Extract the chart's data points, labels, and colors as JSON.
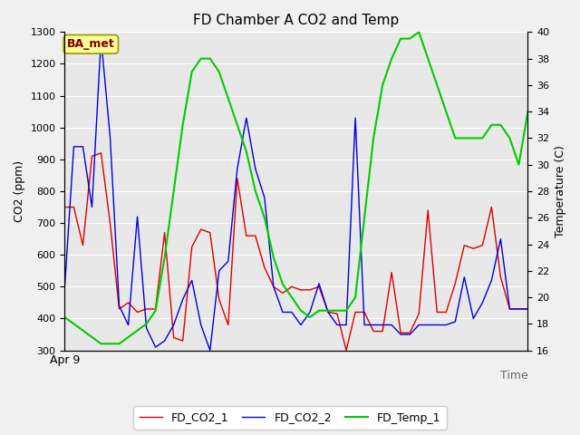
{
  "title": "FD Chamber A CO2 and Temp",
  "xlabel": "Time",
  "ylabel_left": "CO2 (ppm)",
  "ylabel_right": "Temperature (C)",
  "x_label_start": "Apr 9",
  "ylim_left": [
    300,
    1300
  ],
  "ylim_right": [
    16,
    40
  ],
  "yticks_left": [
    300,
    400,
    500,
    600,
    700,
    800,
    900,
    1000,
    1100,
    1200,
    1300
  ],
  "yticks_right": [
    16,
    18,
    20,
    22,
    24,
    26,
    28,
    30,
    32,
    34,
    36,
    38,
    40
  ],
  "fig_facecolor": "#f0f0f0",
  "plot_bg_color": "#e8e8e8",
  "annotation_text": "BA_met",
  "annotation_bg": "#ffff99",
  "annotation_border": "#999900",
  "annotation_text_color": "#800000",
  "legend_labels": [
    "FD_CO2_1",
    "FD_CO2_2",
    "FD_Temp_1"
  ],
  "line_colors": [
    "#dd0000",
    "#0000dd",
    "#00cc00"
  ],
  "co2_1": [
    750,
    750,
    630,
    910,
    920,
    700,
    430,
    450,
    420,
    430,
    430,
    670,
    340,
    330,
    625,
    680,
    670,
    460,
    380,
    840,
    660,
    660,
    560,
    500,
    480,
    500,
    490,
    490,
    500,
    420,
    415,
    300,
    420,
    420,
    360,
    360,
    545,
    355,
    355,
    415,
    740,
    420,
    420,
    510,
    630,
    620,
    630,
    750,
    530,
    430,
    430,
    430
  ],
  "co2_2": [
    500,
    940,
    940,
    750,
    1280,
    970,
    440,
    380,
    720,
    370,
    310,
    330,
    380,
    460,
    520,
    380,
    300,
    550,
    580,
    870,
    1030,
    870,
    780,
    500,
    420,
    420,
    380,
    420,
    510,
    420,
    380,
    380,
    1030,
    380,
    380,
    380,
    380,
    350,
    350,
    380,
    380,
    380,
    380,
    390,
    530,
    400,
    450,
    520,
    650,
    430,
    430,
    430
  ],
  "temp_1": [
    18.5,
    18,
    17.5,
    17,
    16.5,
    16.5,
    16.5,
    17,
    17.5,
    18,
    19,
    23,
    28,
    33,
    37,
    38,
    38,
    37,
    35,
    33,
    31,
    28,
    26,
    23,
    21,
    20,
    19,
    18.5,
    19,
    19,
    19,
    19,
    20,
    26,
    32,
    36,
    38,
    39.5,
    39.5,
    40,
    38,
    36,
    34,
    32,
    32,
    32,
    32,
    33,
    33,
    32,
    30,
    34
  ]
}
